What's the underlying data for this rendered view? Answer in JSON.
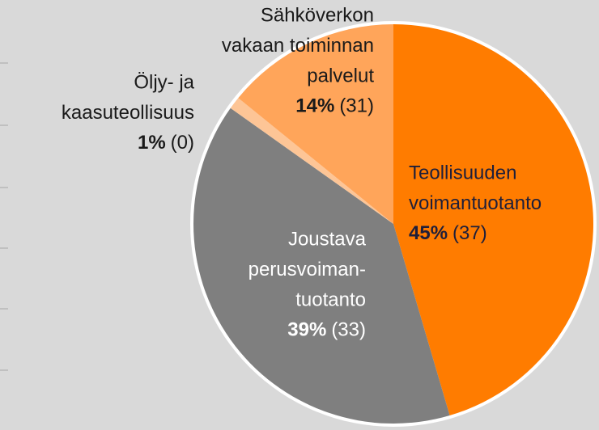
{
  "chart_data": {
    "type": "pie",
    "categories": [
      [
        "Teollisuuden",
        "voimantuotanto"
      ],
      [
        "Joustava",
        "perusvoiman-",
        "tuotanto"
      ],
      [
        "Öljy- ja",
        "kaasuteollisuus"
      ],
      [
        "Sähköverkon",
        "vakaan toiminnan",
        "palvelut"
      ]
    ],
    "values": [
      45,
      39,
      1,
      14
    ],
    "value_labels": [
      "45%",
      "39%",
      "1%",
      "14%"
    ],
    "count_labels": [
      "(37)",
      "(33)",
      "(0)",
      "(31)"
    ],
    "colors": [
      "#ff7c00",
      "#7f7f7f",
      "#fdc596",
      "#ffa55a"
    ]
  }
}
